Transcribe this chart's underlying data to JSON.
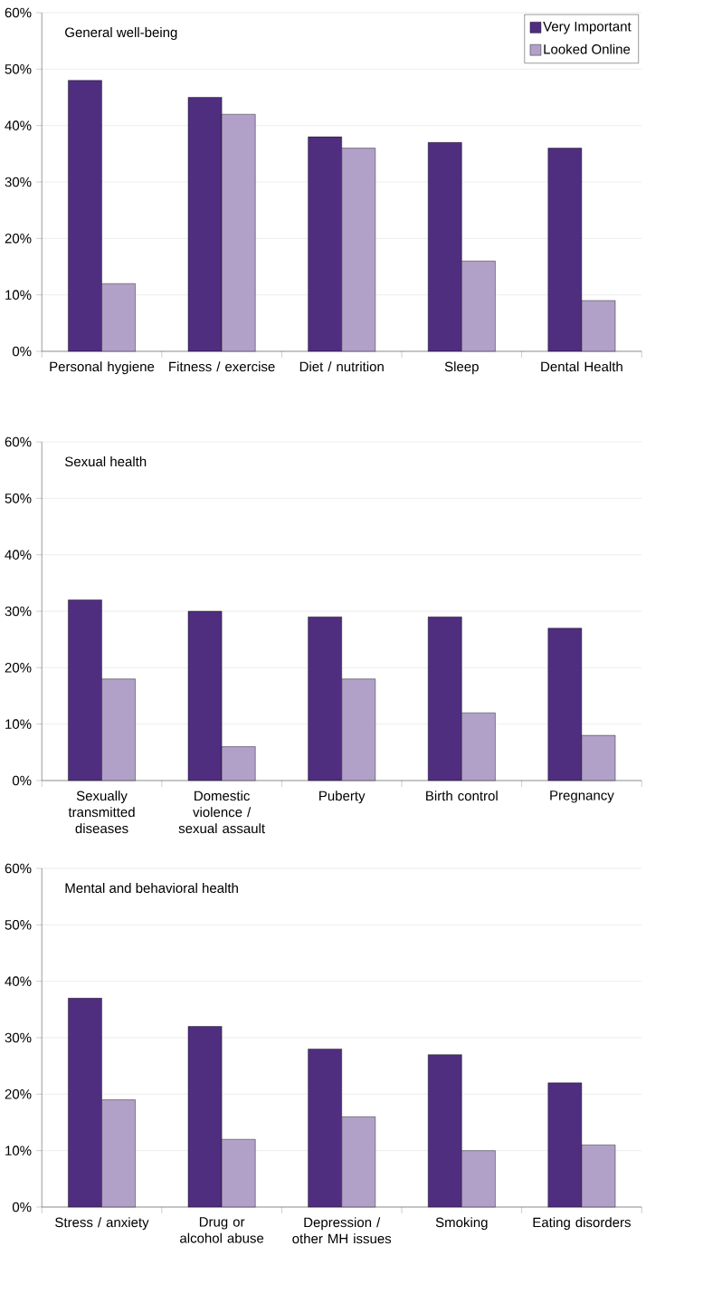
{
  "chart_data": [
    {
      "type": "bar",
      "title": "General well-being",
      "categories": [
        "Personal hygiene",
        "Fitness / exercise",
        "Diet / nutrition",
        "Sleep",
        "Dental Health"
      ],
      "series": [
        {
          "name": "Very Important",
          "color": "#4f2d7f",
          "values": [
            48,
            45,
            38,
            37,
            36
          ]
        },
        {
          "name": "Looked Online",
          "color": "#b1a0c7",
          "values": [
            12,
            42,
            36,
            16,
            9
          ]
        }
      ],
      "ylim": [
        0,
        60
      ],
      "yticks": [
        {
          "value": 0,
          "label": "0%"
        },
        {
          "value": 10,
          "label": "10%"
        },
        {
          "value": 20,
          "label": "20%"
        },
        {
          "value": 30,
          "label": "30%"
        },
        {
          "value": 40,
          "label": "40%"
        },
        {
          "value": 50,
          "label": "50%"
        },
        {
          "value": 60,
          "label": "60%"
        }
      ],
      "grid": "y",
      "legend": "top right"
    },
    {
      "type": "bar",
      "title": "Sexual health",
      "categories": [
        "Sexually transmitted diseases",
        "Domestic violence / sexual assault",
        "Puberty",
        "Birth control",
        "Pregnancy"
      ],
      "series": [
        {
          "color": "#4f2d7f",
          "values": [
            32,
            30,
            29,
            29,
            27
          ]
        },
        {
          "color": "#b1a0c7",
          "values": [
            18,
            6,
            18,
            12,
            8
          ]
        }
      ],
      "ylim": [
        0,
        60
      ],
      "yticks": [
        {
          "value": 0,
          "label": "0%"
        },
        {
          "value": 10,
          "label": "10%"
        },
        {
          "value": 20,
          "label": "20%"
        },
        {
          "value": 30,
          "label": "30%"
        },
        {
          "value": 40,
          "label": "40%"
        },
        {
          "value": 50,
          "label": "50%"
        },
        {
          "value": 60,
          "label": "60%"
        }
      ],
      "grid": "y"
    },
    {
      "type": "bar",
      "title": "Mental and behavioral health",
      "categories": [
        "Stress / anxiety",
        "Drug or alcohol abuse",
        "Depression / other MH issues",
        "Smoking",
        "Eating disorders"
      ],
      "series": [
        {
          "color": "#4f2d7f",
          "values": [
            37,
            32,
            28,
            27,
            22
          ]
        },
        {
          "color": "#b1a0c7",
          "values": [
            19,
            12,
            16,
            10,
            11
          ]
        }
      ],
      "ylim": [
        0,
        60
      ],
      "yticks": [
        {
          "value": 0,
          "label": "0%"
        },
        {
          "value": 10,
          "label": "10%"
        },
        {
          "value": 20,
          "label": "20%"
        },
        {
          "value": 30,
          "label": "30%"
        },
        {
          "value": 40,
          "label": "40%"
        },
        {
          "value": 50,
          "label": "50%"
        },
        {
          "value": 60,
          "label": "60%"
        }
      ],
      "grid": "y"
    }
  ]
}
